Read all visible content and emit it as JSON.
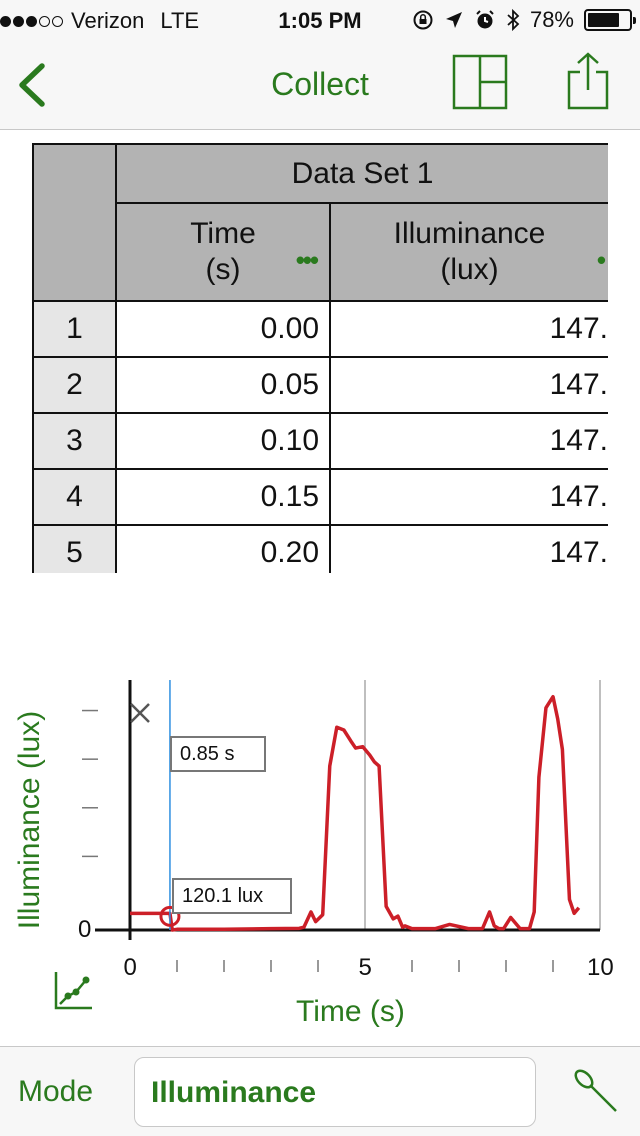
{
  "status_bar": {
    "carrier": "Verizon",
    "network": "LTE",
    "time": "1:05 PM",
    "battery_percent": "78%",
    "battery_level": 0.78,
    "signal_bars_filled": 3,
    "signal_bars_total": 5
  },
  "nav": {
    "title": "Collect",
    "back_icon": "chevron-left-icon",
    "layout_icon": "split-layout-icon",
    "share_icon": "share-icon"
  },
  "table": {
    "data_set": "Data Set 1",
    "columns": [
      {
        "name": "Time",
        "unit": "(s)"
      },
      {
        "name": "Illuminance",
        "unit": "(lux)"
      }
    ],
    "rows": [
      {
        "n": "1",
        "time": "0.00",
        "illum": "147."
      },
      {
        "n": "2",
        "time": "0.05",
        "illum": "147."
      },
      {
        "n": "3",
        "time": "0.10",
        "illum": "147."
      },
      {
        "n": "4",
        "time": "0.15",
        "illum": "147."
      },
      {
        "n": "5",
        "time": "0.20",
        "illum": "147."
      }
    ]
  },
  "graph": {
    "cursor_time": "0.85 s",
    "cursor_value": "120.1 lux"
  },
  "chart_data": {
    "type": "line",
    "xlabel": "Time (s)",
    "ylabel": "Illuminance (lux)",
    "xlim": [
      0,
      10
    ],
    "x_tick_labels": [
      "0",
      "5",
      "10"
    ],
    "y_tick_labels": [
      "0"
    ],
    "ylim": [
      0,
      1800
    ],
    "grid": "vertical lines at 5 and 10",
    "line_color": "#cc1f28",
    "cursor_color": "#2f8fe0",
    "cursor_x": 0.85,
    "cursor_y": 120.1,
    "series": [
      {
        "x": [
          0,
          0.85,
          0.9,
          1.0,
          2.0,
          3.0,
          3.6,
          3.7,
          3.85,
          3.95,
          4.1,
          4.25,
          4.4,
          4.55,
          4.7,
          4.8,
          4.95,
          5.1,
          5.2,
          5.3,
          5.45,
          5.6,
          5.7,
          5.8,
          5.85,
          6.0,
          6.5,
          6.8,
          7.2,
          7.5,
          7.65,
          7.75,
          7.85,
          7.95,
          8.1,
          8.3,
          8.5,
          8.6,
          8.7,
          8.85,
          9.0,
          9.1,
          9.2,
          9.35,
          9.45,
          9.55
        ],
        "y": [
          120,
          120,
          0,
          5,
          5,
          10,
          12,
          20,
          130,
          60,
          110,
          1180,
          1460,
          1440,
          1360,
          1310,
          1320,
          1260,
          1210,
          1180,
          170,
          80,
          100,
          20,
          30,
          10,
          10,
          40,
          10,
          10,
          130,
          30,
          10,
          10,
          90,
          10,
          10,
          130,
          1100,
          1600,
          1680,
          1520,
          1300,
          220,
          120,
          160
        ]
      }
    ]
  },
  "bottom_bar": {
    "mode_label": "Mode",
    "mode_value": "Illuminance",
    "probe_icon": "probe-icon"
  }
}
